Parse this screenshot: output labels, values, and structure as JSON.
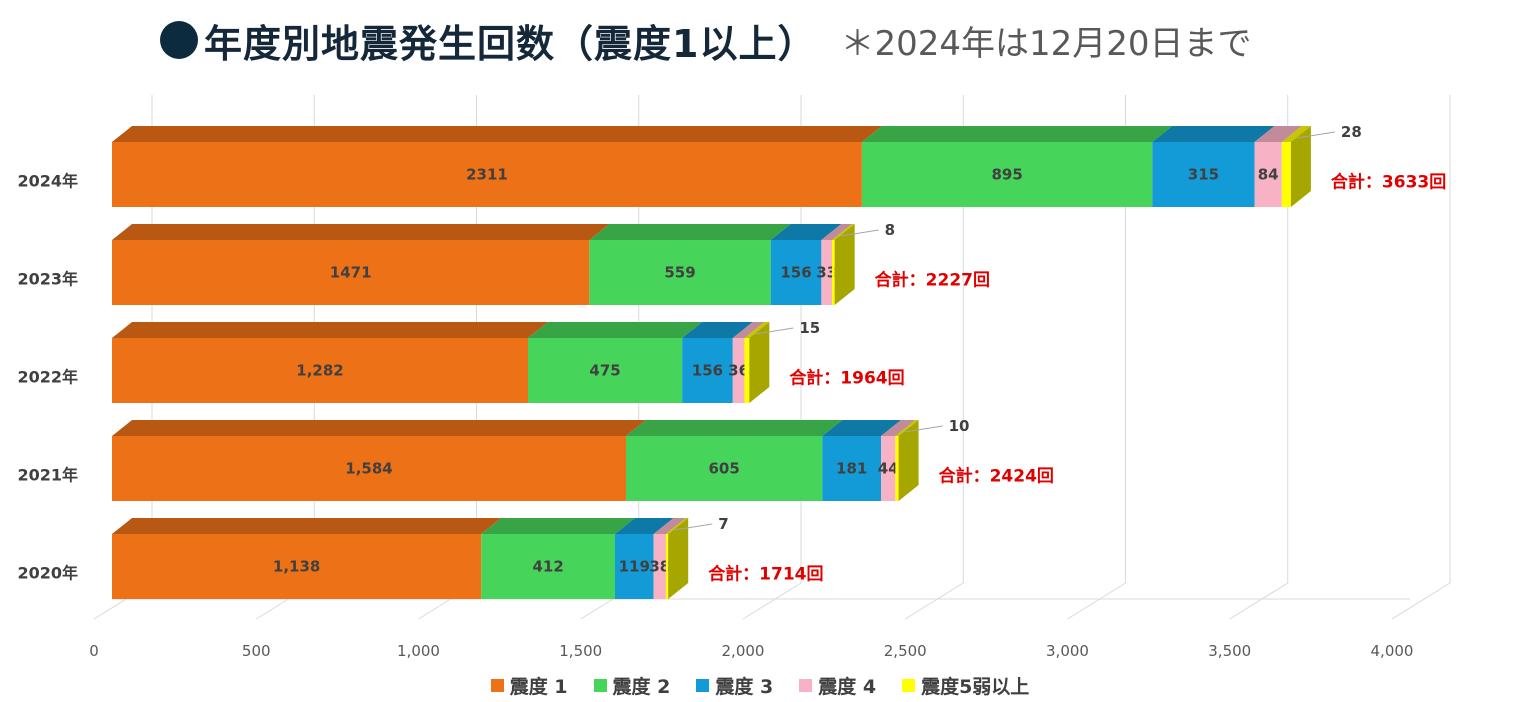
{
  "title": {
    "main": "年度別地震発生回数（震度1以上）",
    "note": "＊2024年は12月20日まで"
  },
  "chart_data": {
    "type": "bar",
    "orientation": "horizontal",
    "stacked": true,
    "style": "3d",
    "categories": [
      "2024年",
      "2023年",
      "2022年",
      "2021年",
      "2020年"
    ],
    "series": [
      {
        "name": "震度 1",
        "color": "#ed7117",
        "values": [
          2311,
          1471,
          1282,
          1584,
          1138
        ],
        "labels": [
          "2311",
          "1471",
          "1,282",
          "1,584",
          "1,138"
        ]
      },
      {
        "name": "震度 2",
        "color": "#47d45a",
        "values": [
          895,
          559,
          475,
          605,
          412
        ],
        "labels": [
          "895",
          "559",
          "475",
          "605",
          "412"
        ]
      },
      {
        "name": "震度 3",
        "color": "#129bd6",
        "values": [
          315,
          156,
          156,
          181,
          119
        ],
        "labels": [
          "315",
          "156",
          "156",
          "181",
          "119"
        ]
      },
      {
        "name": "震度 4",
        "color": "#f7b2c5",
        "values": [
          84,
          33,
          36,
          44,
          38
        ],
        "labels": [
          "84",
          "33",
          "36",
          "44",
          "38"
        ]
      },
      {
        "name": "震度5弱以上",
        "color": "#ffff00",
        "values": [
          28,
          8,
          15,
          10,
          7
        ],
        "labels": [
          "28",
          "8",
          "15",
          "10",
          "7"
        ]
      }
    ],
    "totals": [
      "合計：3633回",
      "合計：2227回",
      "合計：1964回",
      "合計：2424回",
      "合計：1714回"
    ],
    "xlim": [
      0,
      4000
    ],
    "xticks": [
      "0",
      "500",
      "1,000",
      "1,500",
      "2,000",
      "2,500",
      "3,000",
      "3,500",
      "4,000"
    ],
    "grid": true,
    "legend_position": "bottom"
  },
  "colors": {
    "title_text": "#14283a",
    "note_text": "#595959",
    "total_text": "#e00000",
    "value_text": "#404040",
    "grid": "#d9d9d9"
  }
}
